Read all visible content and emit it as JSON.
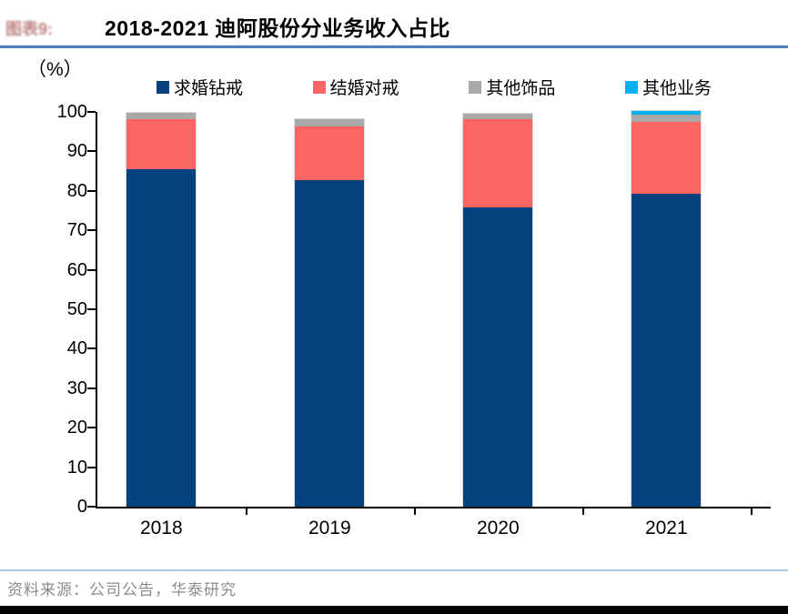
{
  "figure": {
    "tag": "图表9:",
    "title": "2018-2021 迪阿股份分业务收入占比",
    "unit_label": "（%）"
  },
  "chart_data": {
    "type": "bar",
    "stacked": true,
    "title": "2018-2021 迪阿股份分业务收入占比",
    "categories": [
      "2018",
      "2019",
      "2020",
      "2021"
    ],
    "series": [
      {
        "name": "求婚钻戒",
        "color": "#04417e",
        "values": [
          85.6,
          83.0,
          76.0,
          79.4
        ]
      },
      {
        "name": "结婚对戒",
        "color": "#fd6663",
        "values": [
          12.8,
          13.6,
          22.5,
          18.4
        ]
      },
      {
        "name": "其他饰品",
        "color": "#a9a9a9",
        "values": [
          1.6,
          1.8,
          1.2,
          1.7
        ]
      },
      {
        "name": "其他业务",
        "color": "#00b0f0",
        "values": [
          0,
          0,
          0,
          1.0
        ]
      }
    ],
    "ylabel": "（%）",
    "ylim": [
      0,
      100
    ],
    "ytick_step": 10,
    "grid": false,
    "legend_position": "top"
  },
  "colors": {
    "title_rule": "#4d7ebf",
    "footer_rule": "#a9c7e4",
    "bottom_bar": "#050508",
    "fig_tag_text": "#8b2020",
    "footer_text": "#8c8c8c"
  },
  "footer": {
    "source": "资料来源：公司公告，华泰研究"
  }
}
